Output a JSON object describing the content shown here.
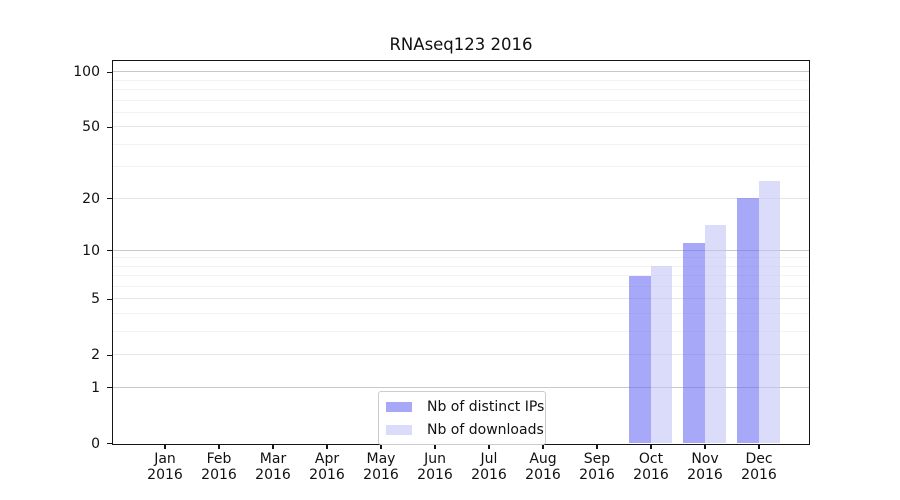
{
  "figure": {
    "title": "RNAseq123 2016"
  },
  "chart_data": {
    "type": "bar",
    "title": "RNAseq123 2016",
    "x_categories": [
      "Jan",
      "Feb",
      "Mar",
      "Apr",
      "May",
      "Jun",
      "Jul",
      "Aug",
      "Sep",
      "Oct",
      "Nov",
      "Dec"
    ],
    "x_year": "2016",
    "series": [
      {
        "name": "Nb of distinct IPs",
        "color": "rgba(105,105,245,0.58)",
        "values": [
          0,
          0,
          0,
          0,
          0,
          0,
          0,
          0,
          0,
          7,
          11,
          20
        ]
      },
      {
        "name": "Nb of downloads",
        "color": "rgba(193,193,246,0.58)",
        "values": [
          0,
          0,
          0,
          0,
          0,
          0,
          0,
          0,
          0,
          8,
          14,
          25
        ]
      }
    ],
    "yscale": "log1p",
    "ylim": [
      0,
      114.6
    ],
    "yticks": [
      0,
      1,
      2,
      5,
      10,
      20,
      50,
      100
    ],
    "grid": {
      "major": [
        1,
        10,
        100
      ],
      "mid": [
        2,
        5,
        20,
        50
      ],
      "minor": [
        3,
        4,
        6,
        7,
        8,
        9,
        30,
        40,
        60,
        70,
        80,
        90
      ]
    },
    "legend_position": "bottom-center",
    "colors": {
      "spine": "#151515",
      "grid_major": "#c9c9c9",
      "grid_mid": "#e7e7e7",
      "grid_minor": "#f2f2f2",
      "background": "#ffffff"
    }
  }
}
